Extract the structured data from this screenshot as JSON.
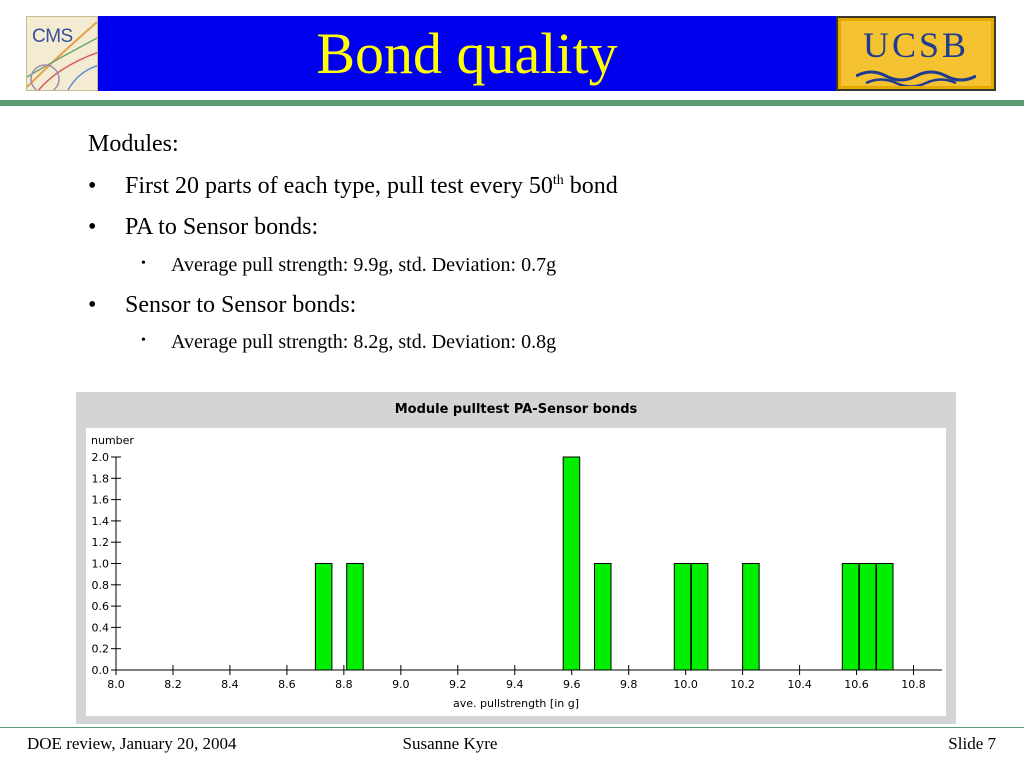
{
  "header": {
    "title": "Bond quality",
    "left_logo": {
      "icon": "cms-logo",
      "text": "CMS"
    },
    "right_logo": {
      "icon": "ucsb-logo",
      "text": "UCSB"
    },
    "colors": {
      "band": "#0000ee",
      "title": "#ffff00",
      "rule": "#5a9a72"
    }
  },
  "content": {
    "heading": "Modules:",
    "bullet_marker": "•",
    "bullets": [
      {
        "text_before": "First 20 parts of each type, pull test every 50",
        "sup": "th",
        "text_after": " bond"
      },
      {
        "text": "PA to Sensor bonds:"
      },
      {
        "text": "Sensor to Sensor bonds:"
      }
    ],
    "sub_bullets": [
      {
        "text": "Average pull strength: 9.9g, std. Deviation: 0.7g"
      },
      {
        "text": "Average pull strength: 8.2g, std. Deviation: 0.8g"
      }
    ]
  },
  "chart_data": {
    "type": "bar",
    "title": "Module pulltest PA-Sensor bonds",
    "xlabel": "ave. pullstrength [in g]",
    "ylabel": "number",
    "xlim": [
      8.0,
      10.9
    ],
    "ylim": [
      0.0,
      2.0
    ],
    "bin_width": 0.058,
    "xticks": [
      "8.0",
      "8.2",
      "8.4",
      "8.6",
      "8.8",
      "9.0",
      "9.2",
      "9.4",
      "9.6",
      "9.8",
      "10.0",
      "10.2",
      "10.4",
      "10.6",
      "10.8"
    ],
    "yticks": [
      "0.0",
      "0.2",
      "0.4",
      "0.6",
      "0.8",
      "1.0",
      "1.2",
      "1.4",
      "1.6",
      "1.8",
      "2.0"
    ],
    "bins": [
      {
        "x": 8.7,
        "value": 1
      },
      {
        "x": 8.81,
        "value": 1
      },
      {
        "x": 9.57,
        "value": 2
      },
      {
        "x": 9.68,
        "value": 1
      },
      {
        "x": 9.96,
        "value": 1
      },
      {
        "x": 10.02,
        "value": 1
      },
      {
        "x": 10.2,
        "value": 1
      },
      {
        "x": 10.55,
        "value": 1
      },
      {
        "x": 10.61,
        "value": 1
      },
      {
        "x": 10.67,
        "value": 1
      }
    ],
    "bar_color": "#00ee00",
    "grid": false
  },
  "footer": {
    "left": "DOE review, January 20, 2004",
    "center": "Susanne Kyre",
    "right": "Slide 7"
  }
}
